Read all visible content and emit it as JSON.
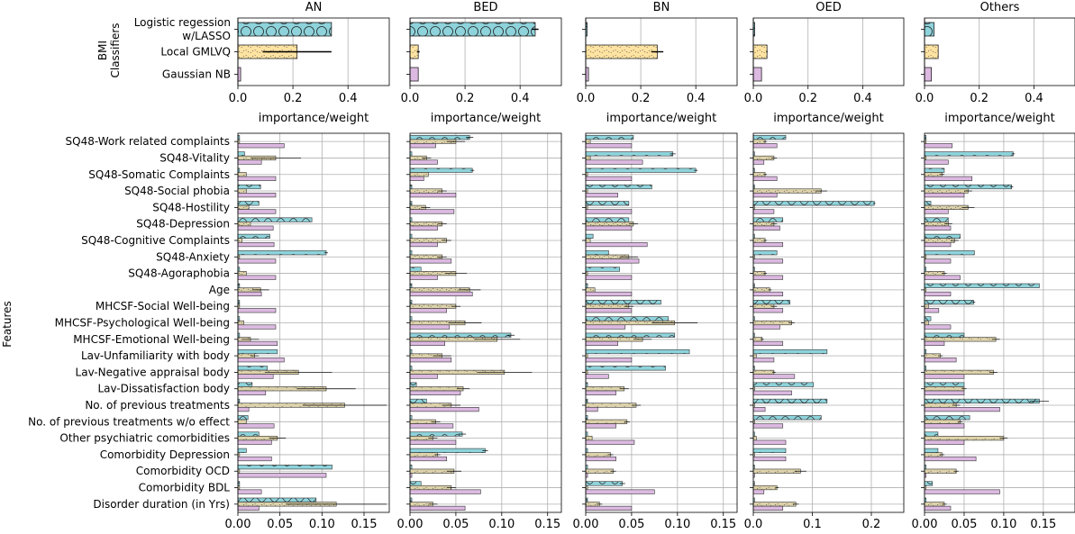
{
  "colors": {
    "lasso": "#8ed3db",
    "gmlvq": "#ffe3a1",
    "gnb": "#dcb9e1",
    "cream": "#ddd2aa",
    "grid": "#b0b0b0"
  },
  "chart_data": [
    {
      "type": "bar",
      "orientation": "horizontal",
      "group": "classifiers",
      "panels": [
        "AN",
        "BED",
        "BN",
        "OED",
        "Others"
      ],
      "ylabel": "BMI\nClassifiers",
      "xlabel": "importance/weight",
      "xlim": [
        0,
        0.55
      ],
      "xticks": [
        0,
        0.2,
        0.4
      ],
      "categories": [
        "Logistic regession\nw/LASSO",
        "Local GMLVQ",
        "Gaussian NB"
      ],
      "values": {
        "AN": [
          0.34,
          0.215,
          0.01
        ],
        "BED": [
          0.455,
          0.03,
          0.03
        ],
        "BN": [
          0.005,
          0.26,
          0.01
        ],
        "OED": [
          0.005,
          0.05,
          0.03
        ],
        "Others": [
          0.035,
          0.05,
          0.025
        ]
      },
      "errors": {
        "AN": [
          0,
          0.125,
          0
        ],
        "BED": [
          0.012,
          0.005,
          0
        ],
        "BN": [
          0,
          0.022,
          0
        ],
        "OED": [
          0,
          0.002,
          0
        ],
        "Others": [
          0,
          0,
          0
        ]
      }
    },
    {
      "type": "bar",
      "orientation": "horizontal",
      "group": "features",
      "panels": [
        "AN",
        "BED",
        "BN",
        "OED",
        "Others"
      ],
      "ylabel": "Features",
      "xlabel": "",
      "categories": [
        "SQ48-Work related complaints",
        "SQ48-Vitality",
        "SQ48-Somatic Complaints",
        "SQ48-Social phobia",
        "SQ48-Hostility",
        "SQ48-Depression",
        "SQ48-Cognitive Complaints",
        "SQ48-Anxiety",
        "SQ48-Agoraphobia",
        "Age",
        "MHCSF-Social Well-being",
        "MHCSF-Psychological Well-being",
        "MHCSF-Emotional Well-being",
        "Lav-Unfamiliarity with body",
        "Lav-Negative appraisal body",
        "Lav-Dissatisfaction body",
        "No. of previous treatments",
        "No. of previous treatments w/o effect",
        "Other psychiatric comorbidities",
        "Comorbidity Depression",
        "Comorbidity OCD",
        "Comorbidity BDL",
        "Disorder duration (in Yrs)"
      ],
      "xlims": {
        "AN": [
          0,
          0.18
        ],
        "BED": [
          0,
          0.165
        ],
        "BN": [
          0,
          0.165
        ],
        "OED": [
          0,
          0.255
        ],
        "Others": [
          0,
          0.19
        ]
      },
      "xticks": {
        "AN": [
          "0.00",
          "0.05",
          "0.10",
          "0.15"
        ],
        "BED": [
          "0.00",
          "0.05",
          "0.10",
          "0.15"
        ],
        "BN": [
          "0.00",
          "0.05",
          "0.10",
          "0.15"
        ],
        "OED": [
          "0.0",
          "0.1",
          "0.2"
        ],
        "Others": [
          "0.00",
          "0.05",
          "0.10",
          "0.15"
        ]
      },
      "series": [
        {
          "key": "lasso",
          "values": {
            "AN": [
              0.002,
              0.008,
              0.002,
              0.027,
              0.025,
              0.088,
              0.038,
              0.105,
              0.002,
              0.002,
              0.002,
              0.002,
              0.002,
              0.047,
              0.035,
              0.017,
              0.002,
              0.012,
              0.025,
              0.01,
              0.112,
              0.002,
              0.093
            ],
            "BED": [
              0.065,
              0.002,
              0.068,
              0.002,
              0.002,
              0.002,
              0.002,
              0.002,
              0.012,
              0.002,
              0.002,
              0.002,
              0.11,
              0.002,
              0.002,
              0.007,
              0.018,
              0.002,
              0.057,
              0.082,
              0.002,
              0.012,
              0.002
            ],
            "BN": [
              0.052,
              0.095,
              0.12,
              0.072,
              0.047,
              0.047,
              0.008,
              0.025,
              0.037,
              0.002,
              0.082,
              0.09,
              0.097,
              0.113,
              0.087,
              0.002,
              0.002,
              0.002,
              0.002,
              0.002,
              0.002,
              0.04,
              0.002
            ],
            "OED": [
              0.055,
              0.002,
              0.002,
              0.002,
              0.205,
              0.05,
              0.002,
              0.04,
              0.002,
              0.002,
              0.062,
              0.002,
              0.002,
              0.125,
              0.002,
              0.102,
              0.125,
              0.115,
              0.002,
              0.055,
              0.002,
              0.002,
              0.002
            ],
            "Others": [
              0.002,
              0.112,
              0.025,
              0.11,
              0.008,
              0.03,
              0.045,
              0.063,
              0.002,
              0.145,
              0.062,
              0.008,
              0.05,
              0.002,
              0.002,
              0.05,
              0.145,
              0.057,
              0.017,
              0.017,
              0.002,
              0.01,
              0.002
            ]
          },
          "errors": {
            "AN": [
              0,
              0,
              0,
              0,
              0,
              0,
              0,
              0.002,
              0,
              0,
              0,
              0,
              0,
              0,
              0,
              0,
              0,
              0,
              0,
              0,
              0,
              0,
              0
            ],
            "BED": [
              0.004,
              0,
              0.002,
              0,
              0,
              0,
              0,
              0,
              0,
              0,
              0,
              0,
              0.004,
              0,
              0,
              0,
              0,
              0,
              0.004,
              0.003,
              0,
              0,
              0
            ],
            "BN": [
              0,
              0.003,
              0.002,
              0,
              0,
              0,
              0,
              0,
              0,
              0,
              0,
              0,
              0,
              0,
              0,
              0,
              0,
              0,
              0,
              0,
              0,
              0.003,
              0
            ],
            "OED": [
              0,
              0,
              0,
              0,
              0.002,
              0,
              0,
              0,
              0,
              0,
              0,
              0,
              0,
              0,
              0,
              0,
              0,
              0,
              0,
              0,
              0,
              0,
              0
            ],
            "Others": [
              0,
              0.002,
              0,
              0.002,
              0,
              0,
              0,
              0,
              0,
              0,
              0.002,
              0,
              0,
              0,
              0,
              0,
              0.012,
              0,
              0,
              0,
              0,
              0,
              0
            ]
          }
        },
        {
          "key": "cream",
          "values": {
            "AN": [
              0.002,
              0.045,
              0.01,
              0.01,
              0.013,
              0.015,
              0.005,
              0.002,
              0.01,
              0.027,
              0.002,
              0.007,
              0.015,
              0.02,
              0.072,
              0.105,
              0.127,
              0.01,
              0.047,
              0.002,
              0.002,
              0.002,
              0.117
            ],
            "BED": [
              0.05,
              0.018,
              0.02,
              0.035,
              0.017,
              0.035,
              0.04,
              0.035,
              0.05,
              0.065,
              0.05,
              0.06,
              0.095,
              0.035,
              0.103,
              0.058,
              0.045,
              0.028,
              0.025,
              0.03,
              0.048,
              0.045,
              0.025
            ],
            "BN": [
              0.005,
              0.005,
              0.002,
              0.002,
              0.002,
              0.052,
              0.005,
              0.047,
              0.002,
              0.01,
              0.047,
              0.097,
              0.062,
              0.002,
              0.002,
              0.042,
              0.055,
              0.045,
              0.007,
              0.027,
              0.03,
              0.002,
              0.015
            ],
            "OED": [
              0.02,
              0.035,
              0.02,
              0.115,
              0.002,
              0.035,
              0.02,
              0.002,
              0.02,
              0.028,
              0.035,
              0.065,
              0.015,
              0.005,
              0.035,
              0.002,
              0.002,
              0.002,
              0.005,
              0.002,
              0.08,
              0.04,
              0.072
            ],
            "Others": [
              0.002,
              0.002,
              0.022,
              0.055,
              0.055,
              0.03,
              0.038,
              0.002,
              0.025,
              0.002,
              0.005,
              0.005,
              0.09,
              0.02,
              0.087,
              0.05,
              0.04,
              0.045,
              0.1,
              0.022,
              0.04,
              0.002,
              0.025
            ]
          },
          "errors": {
            "AN": [
              0,
              0.03,
              0,
              0,
              0,
              0,
              0,
              0,
              0,
              0.01,
              0,
              0,
              0.01,
              0.005,
              0.04,
              0.035,
              0.05,
              0,
              0.01,
              0,
              0,
              0,
              0.06
            ],
            "BED": [
              0.01,
              0.005,
              0,
              0.005,
              0.005,
              0.005,
              0.005,
              0.005,
              0.012,
              0.012,
              0.005,
              0.018,
              0.025,
              0.01,
              0.03,
              0.007,
              0.01,
              0.005,
              0.005,
              0.003,
              0.008,
              0.005,
              0.005
            ],
            "BN": [
              0,
              0,
              0,
              0,
              0,
              0.005,
              0,
              0.01,
              0,
              0,
              0.005,
              0.025,
              0.01,
              0,
              0,
              0.005,
              0.005,
              0.003,
              0,
              0.003,
              0.003,
              0,
              0.003
            ],
            "OED": [
              0.003,
              0.005,
              0.003,
              0.01,
              0,
              0.005,
              0.003,
              0,
              0.003,
              0.003,
              0.005,
              0.005,
              0.003,
              0,
              0.003,
              0,
              0,
              0,
              0,
              0,
              0.01,
              0.003,
              0.005
            ],
            "Others": [
              0,
              0,
              0.003,
              0.005,
              0.008,
              0.005,
              0.005,
              0,
              0.003,
              0,
              0,
              0,
              0.005,
              0.003,
              0.005,
              0.003,
              0.005,
              0.003,
              0.005,
              0.003,
              0.003,
              0,
              0.003
            ]
          }
        },
        {
          "key": "gnb",
          "values": {
            "AN": [
              0.055,
              0.028,
              0.045,
              0.045,
              0.045,
              0.042,
              0.043,
              0.045,
              0.045,
              0.028,
              0.045,
              0.045,
              0.047,
              0.055,
              0.042,
              0.033,
              0.013,
              0.043,
              0.04,
              0.04,
              0.105,
              0.028,
              0.025
            ],
            "BED": [
              0.028,
              0.03,
              0.015,
              0.05,
              0.048,
              0.03,
              0.03,
              0.045,
              0.03,
              0.068,
              0.04,
              0.043,
              0.038,
              0.045,
              0.03,
              0.055,
              0.075,
              0.047,
              0.05,
              0.04,
              0.002,
              0.077,
              0.06
            ],
            "BN": [
              0.05,
              0.062,
              0.05,
              0.035,
              0.05,
              0.05,
              0.067,
              0.058,
              0.05,
              0.05,
              0.05,
              0.043,
              0.035,
              0.05,
              0.025,
              0.033,
              0.013,
              0.033,
              0.053,
              0.033,
              0.002,
              0.075,
              0.05
            ],
            "OED": [
              0.04,
              0.018,
              0.04,
              0.04,
              0.035,
              0.045,
              0.05,
              0.05,
              0.05,
              0.05,
              0.05,
              0.045,
              0.05,
              0.035,
              0.07,
              0.065,
              0.02,
              0.05,
              0.055,
              0.055,
              0.002,
              0.018,
              0.05
            ],
            "Others": [
              0.035,
              0.03,
              0.06,
              0.05,
              0.03,
              0.033,
              0.033,
              0.033,
              0.045,
              0.033,
              0.018,
              0.033,
              0.025,
              0.04,
              0.05,
              0.05,
              0.095,
              0.05,
              0.05,
              0.065,
              0.002,
              0.095,
              0.033
            ]
          },
          "errors": {
            "AN": [
              0,
              0,
              0,
              0,
              0,
              0,
              0,
              0,
              0,
              0,
              0,
              0,
              0,
              0,
              0,
              0,
              0,
              0,
              0,
              0,
              0,
              0,
              0
            ],
            "BED": [
              0,
              0,
              0,
              0,
              0,
              0,
              0,
              0,
              0,
              0,
              0,
              0,
              0,
              0,
              0,
              0,
              0,
              0,
              0,
              0,
              0,
              0,
              0
            ],
            "BN": [
              0,
              0,
              0,
              0,
              0,
              0,
              0,
              0,
              0,
              0,
              0,
              0,
              0,
              0,
              0,
              0,
              0,
              0,
              0,
              0,
              0,
              0,
              0
            ],
            "OED": [
              0,
              0,
              0,
              0,
              0,
              0,
              0,
              0,
              0,
              0,
              0,
              0,
              0,
              0,
              0,
              0,
              0,
              0,
              0,
              0,
              0,
              0,
              0
            ],
            "Others": [
              0,
              0,
              0,
              0,
              0,
              0,
              0,
              0,
              0,
              0,
              0,
              0,
              0,
              0,
              0,
              0,
              0,
              0,
              0,
              0,
              0,
              0,
              0
            ]
          }
        }
      ]
    }
  ]
}
